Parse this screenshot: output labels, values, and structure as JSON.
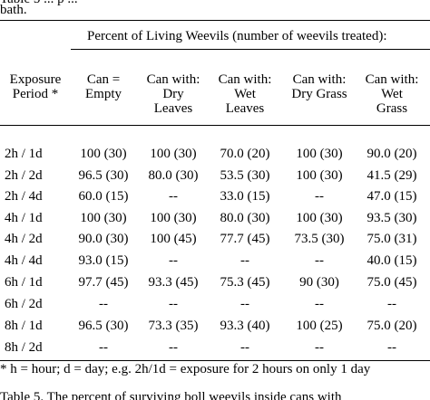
{
  "top_fragment": {
    "clipped_line": "Table 5 ... p ...",
    "bath": "bath."
  },
  "table": {
    "span_header": "Percent of Living Weevils (number of weevils treated):",
    "columns": [
      {
        "line1": "Exposure",
        "line2": "Period *",
        "line3": ""
      },
      {
        "line1": "Can =",
        "line2": "Empty",
        "line3": ""
      },
      {
        "line1": "Can with:",
        "line2": "Dry",
        "line3": "Leaves"
      },
      {
        "line1": "Can with:",
        "line2": "Wet",
        "line3": "Leaves"
      },
      {
        "line1": "Can with:",
        "line2": "Dry Grass",
        "line3": ""
      },
      {
        "line1": "Can with:",
        "line2": "Wet",
        "line3": "Grass"
      }
    ],
    "rows": [
      {
        "period": "2h / 1d",
        "cells": [
          "100 (30)",
          "100 (30)",
          "70.0 (20)",
          "100 (30)",
          "90.0 (20)"
        ]
      },
      {
        "period": "2h / 2d",
        "cells": [
          "96.5 (30)",
          "80.0 (30)",
          "53.5 (30)",
          "100 (30)",
          "41.5 (29)"
        ]
      },
      {
        "period": "2h / 4d",
        "cells": [
          "60.0 (15)",
          "--",
          "33.0 (15)",
          "--",
          "47.0 (15)"
        ]
      },
      {
        "period": "4h / 1d",
        "cells": [
          "100 (30)",
          "100 (30)",
          "80.0 (30)",
          "100 (30)",
          "93.5 (30)"
        ]
      },
      {
        "period": "4h / 2d",
        "cells": [
          "90.0 (30)",
          "100 (45)",
          "77.7 (45)",
          "73.5 (30)",
          "75.0 (31)"
        ]
      },
      {
        "period": "4h / 4d",
        "cells": [
          "93.0 (15)",
          "--",
          "--",
          "--",
          "40.0 (15)"
        ]
      },
      {
        "period": "6h / 1d",
        "cells": [
          "97.7 (45)",
          "93.3 (45)",
          "75.3 (45)",
          "90 (30)",
          "75.0 (45)"
        ]
      },
      {
        "period": "6h / 2d",
        "cells": [
          "--",
          "--",
          "--",
          "--",
          "--"
        ]
      },
      {
        "period": "8h / 1d",
        "cells": [
          "96.5 (30)",
          "73.3 (35)",
          "93.3 (40)",
          "100 (25)",
          "75.0 (20)"
        ]
      },
      {
        "period": "8h / 2d",
        "cells": [
          "--",
          "--",
          "--",
          "--",
          "--"
        ]
      }
    ]
  },
  "footnote": "* h = hour; d = day; e.g. 2h/1d = exposure for 2 hours on only 1 day",
  "caption_fragment": "Table 5. The percent of surviving boll weevils inside cans with"
}
